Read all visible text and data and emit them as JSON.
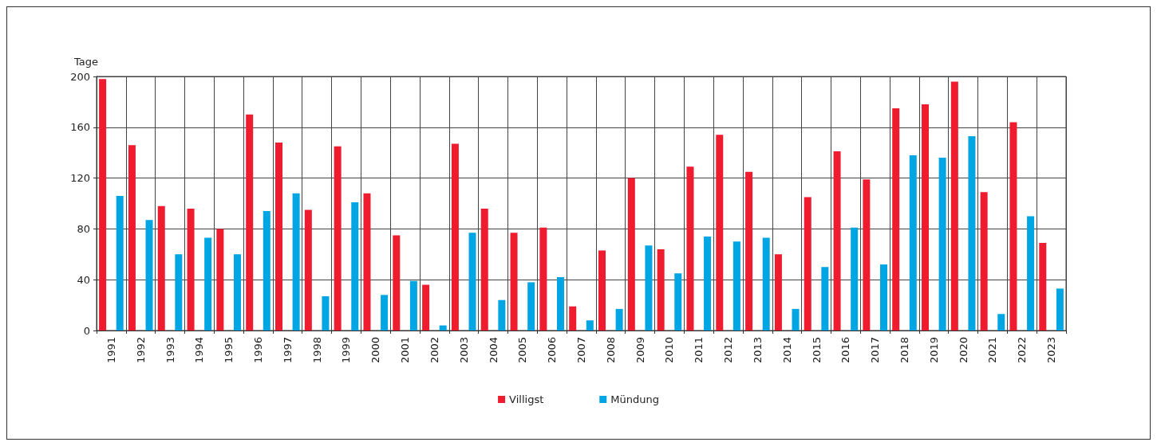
{
  "chart_data": {
    "type": "bar",
    "ylabel": "Tage",
    "categories": [
      "1991",
      "1992",
      "1993",
      "1994",
      "1995",
      "1996",
      "1997",
      "1998",
      "1999",
      "2000",
      "2001",
      "2002",
      "2003",
      "2004",
      "2005",
      "2006",
      "2007",
      "2008",
      "2009",
      "2010",
      "2011",
      "2012",
      "2013",
      "2014",
      "2015",
      "2016",
      "2017",
      "2018",
      "2019",
      "2020",
      "2021",
      "2022",
      "2023"
    ],
    "series": [
      {
        "name": "Villigst",
        "color": "#ee1c2e",
        "values": [
          198,
          146,
          98,
          96,
          80,
          170,
          148,
          95,
          145,
          108,
          75,
          36,
          147,
          96,
          77,
          81,
          19,
          63,
          120,
          64,
          129,
          154,
          125,
          60,
          105,
          141,
          119,
          175,
          178,
          196,
          109,
          164,
          69
        ]
      },
      {
        "name": "Mündung",
        "color": "#00a6e4",
        "values": [
          106,
          87,
          60,
          73,
          60,
          94,
          108,
          27,
          101,
          28,
          39,
          4,
          77,
          24,
          38,
          42,
          8,
          17,
          67,
          45,
          74,
          70,
          73,
          17,
          50,
          81,
          52,
          138,
          136,
          153,
          13,
          90,
          33
        ]
      }
    ],
    "ylim": [
      0,
      200
    ],
    "yticks": [
      0,
      40,
      80,
      120,
      160,
      200
    ],
    "grid": true,
    "legend": "bottom"
  }
}
